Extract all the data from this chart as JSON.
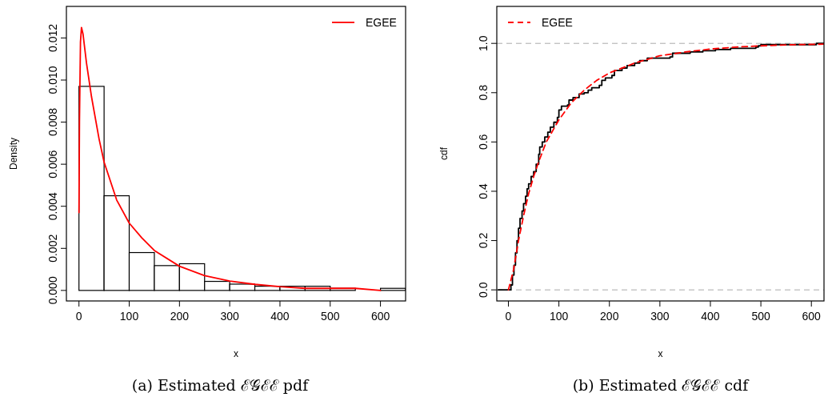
{
  "chart_data": [
    {
      "type": "histogram",
      "xlabel": "x",
      "ylabel": "Density",
      "color": "#ffffff",
      "bins": [
        0,
        50,
        100,
        150,
        200,
        250,
        300,
        350,
        400,
        450,
        500,
        550,
        600,
        650
      ],
      "values": [
        0.0097,
        0.0045,
        0.0018,
        0.00118,
        0.00127,
        0.00043,
        0.0003,
        0.0002,
        0.0002,
        0.0002,
        0.0001,
        0,
        0.0001
      ],
      "series": [
        {
          "type": "line",
          "name": "EGEE",
          "color": "#ff0000",
          "x": [
            0,
            1,
            3,
            5,
            8,
            15,
            25,
            40,
            50,
            75,
            100,
            125,
            150,
            200,
            250,
            300,
            350,
            400,
            450,
            500,
            550,
            600
          ],
          "values": [
            0.0037,
            0.008,
            0.0118,
            0.0125,
            0.0122,
            0.0108,
            0.0092,
            0.0072,
            0.0061,
            0.0043,
            0.0032,
            0.0025,
            0.0019,
            0.00115,
            0.0007,
            0.00045,
            0.00029,
            0.00018,
            0.0001,
            0.0001,
            0.0001,
            0.0
          ]
        }
      ],
      "xlim": [
        -25,
        650
      ],
      "ylim": [
        -0.0005,
        0.0135
      ],
      "xticks": [
        0,
        100,
        200,
        300,
        400,
        500,
        600
      ],
      "yticks": [
        {
          "value": 0,
          "label": "0.000"
        },
        {
          "value": 0.002,
          "label": "0.002"
        },
        {
          "value": 0.004,
          "label": "0.004"
        },
        {
          "value": 0.006,
          "label": "0.006"
        },
        {
          "value": 0.008,
          "label": "0.008"
        },
        {
          "value": 0.01,
          "label": "0.010"
        },
        {
          "value": 0.012,
          "label": "0.012"
        }
      ],
      "legend": "top right",
      "annotations": [
        "(a) Estimated ℰ𝒢ℰℰ pdf"
      ]
    },
    {
      "type": "step",
      "xlabel": "x",
      "ylabel": "cdf",
      "series": [
        {
          "type": "step",
          "color": "#000000",
          "x": [
            -20,
            5,
            8,
            11,
            14,
            17,
            20,
            23,
            27,
            30,
            34,
            37,
            40,
            45,
            50,
            55,
            60,
            62,
            67,
            72,
            78,
            83,
            90,
            97,
            100,
            105,
            117,
            120,
            128,
            140,
            150,
            158,
            165,
            180,
            185,
            192,
            205,
            210,
            225,
            235,
            250,
            260,
            275,
            320,
            325,
            360,
            385,
            410,
            440,
            490,
            495,
            500,
            610,
            625
          ],
          "values": [
            0,
            0.02,
            0.06,
            0.1,
            0.15,
            0.2,
            0.25,
            0.29,
            0.32,
            0.35,
            0.38,
            0.41,
            0.43,
            0.46,
            0.48,
            0.51,
            0.55,
            0.58,
            0.6,
            0.62,
            0.64,
            0.66,
            0.68,
            0.7,
            0.73,
            0.745,
            0.75,
            0.77,
            0.78,
            0.795,
            0.8,
            0.81,
            0.82,
            0.83,
            0.85,
            0.86,
            0.87,
            0.89,
            0.9,
            0.91,
            0.92,
            0.93,
            0.94,
            0.945,
            0.96,
            0.965,
            0.97,
            0.975,
            0.98,
            0.985,
            0.99,
            0.995,
            1.0,
            1.0
          ]
        },
        {
          "type": "line",
          "name": "EGEE",
          "color": "#ff0000",
          "line_style": "dashed",
          "x": [
            0,
            10,
            20,
            30,
            40,
            50,
            60,
            75,
            100,
            125,
            150,
            175,
            200,
            250,
            300,
            350,
            400,
            450,
            500,
            550,
            600,
            625
          ],
          "values": [
            0,
            0.08,
            0.2,
            0.3,
            0.39,
            0.46,
            0.52,
            0.6,
            0.69,
            0.76,
            0.81,
            0.85,
            0.88,
            0.92,
            0.95,
            0.965,
            0.977,
            0.985,
            0.99,
            0.994,
            0.996,
            0.997
          ]
        }
      ],
      "ref_lines": [
        {
          "axis": "y",
          "value": 0,
          "color": "#aaaaaa",
          "line_style": "dashed"
        },
        {
          "axis": "y",
          "value": 1,
          "color": "#aaaaaa",
          "line_style": "dashed"
        }
      ],
      "xlim": [
        -23,
        625
      ],
      "ylim": [
        -0.045,
        1.15
      ],
      "xticks": [
        0,
        100,
        200,
        300,
        400,
        500,
        600
      ],
      "yticks": [
        {
          "value": 0,
          "label": "0.0"
        },
        0.2,
        0.4,
        0.6,
        0.8,
        {
          "value": 1,
          "label": "1.0"
        }
      ],
      "legend": "top left",
      "annotations": [
        "(b) Estimated ℰ𝒢ℰℰ cdf"
      ]
    }
  ]
}
